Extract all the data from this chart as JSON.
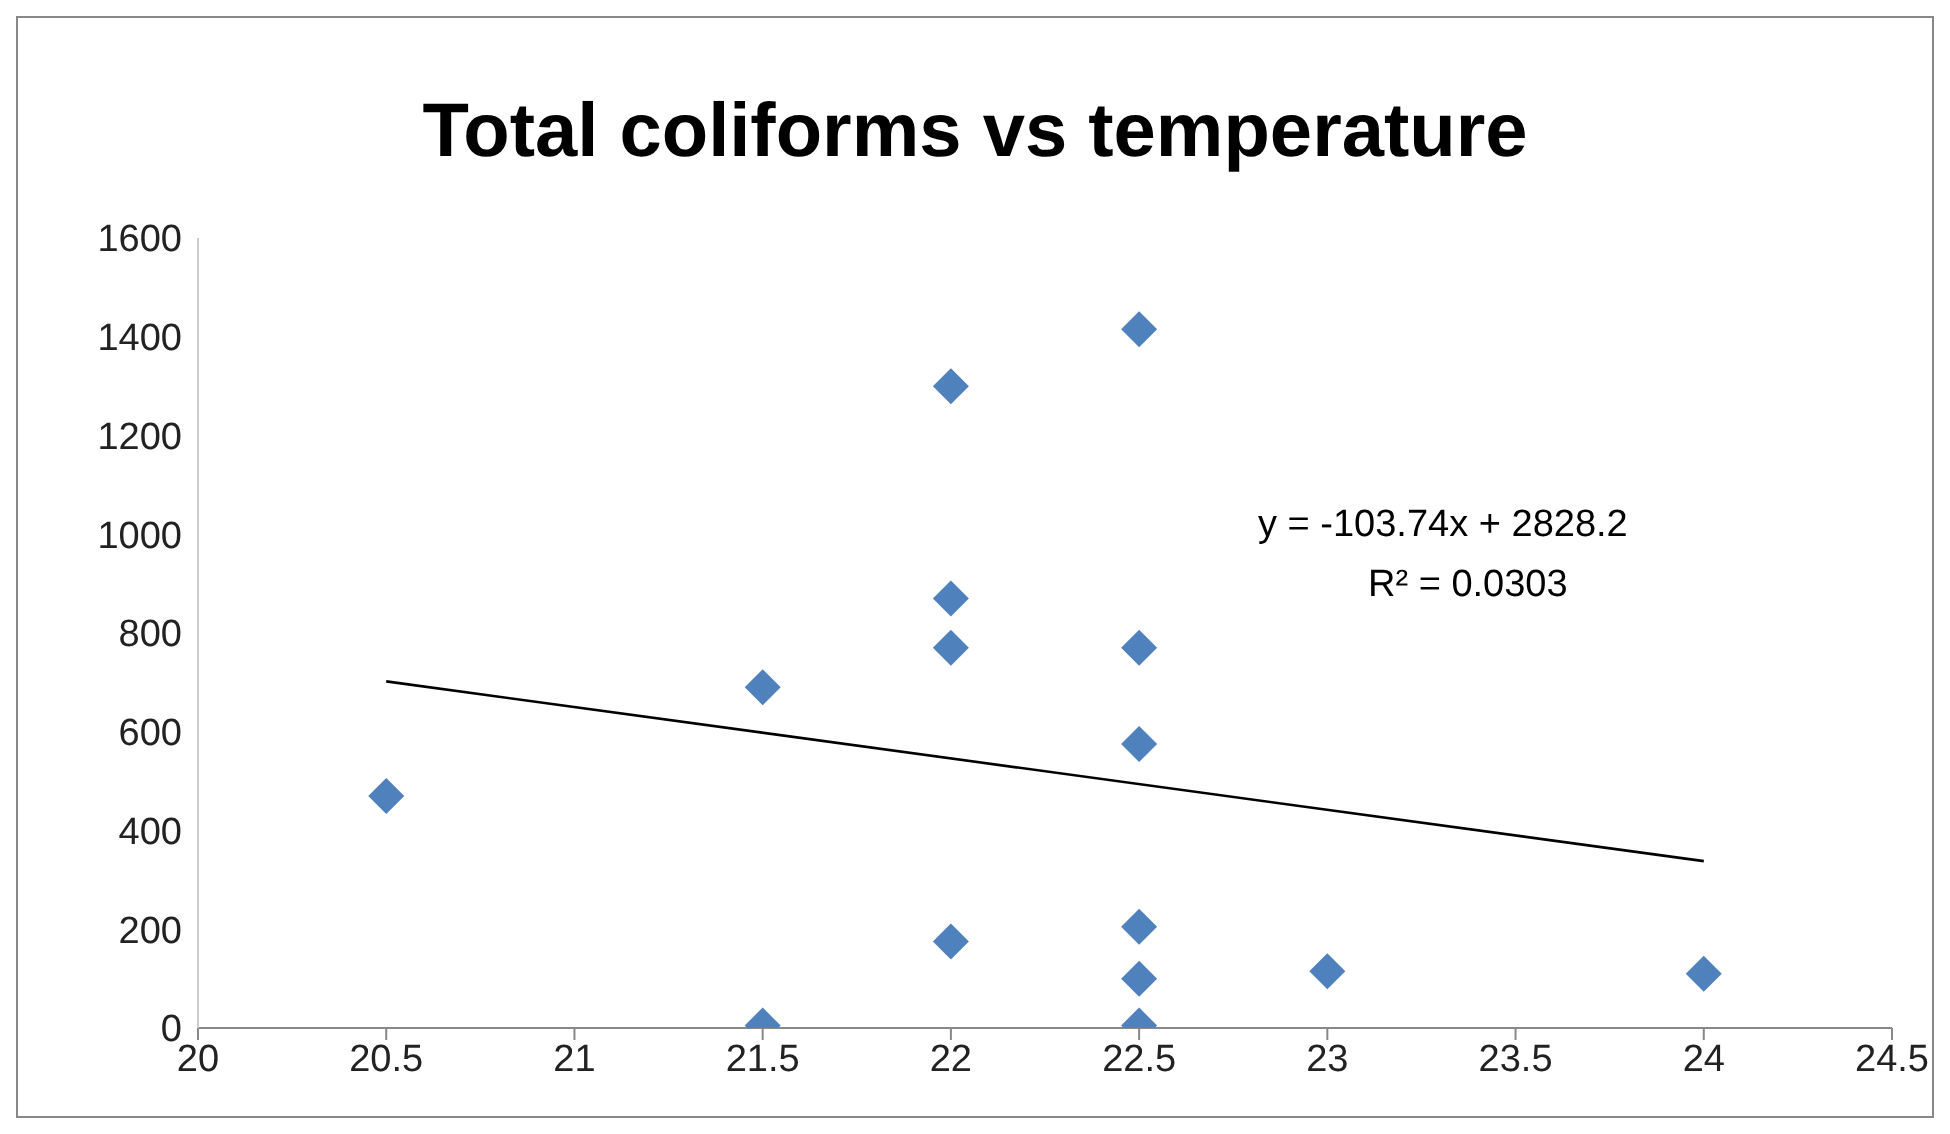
{
  "chart_data": {
    "type": "scatter",
    "title": "Total coliforms vs temperature",
    "marker": "diamond",
    "series": [
      {
        "color": "#4f81bd",
        "x": [
          20.5,
          21.5,
          21.5,
          22,
          22,
          22,
          22,
          22.5,
          22.5,
          22.5,
          22.5,
          22.5,
          22.5,
          23,
          24
        ],
        "values": [
          470,
          690,
          5,
          1300,
          870,
          770,
          175,
          1415,
          770,
          575,
          205,
          100,
          5,
          115,
          110
        ]
      },
      {
        "type": "line",
        "marker": "none",
        "color": "#000000",
        "x": [
          20.5,
          24
        ],
        "values": [
          702,
          338
        ]
      }
    ],
    "xlim": [
      20,
      24.5
    ],
    "xticks": [
      20,
      20.5,
      21,
      21.5,
      22,
      22.5,
      23,
      23.5,
      24,
      24.5
    ],
    "ylim": [
      0,
      1600
    ],
    "yticks": [
      0,
      200,
      400,
      600,
      800,
      1000,
      1200,
      1400,
      1600
    ],
    "annotations": [
      "y = -103.74x + 2828.2",
      "R² = 0.0303"
    ]
  }
}
